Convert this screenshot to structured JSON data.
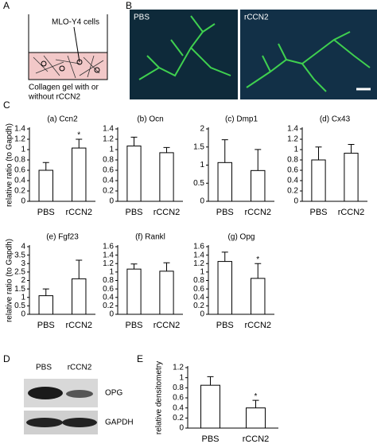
{
  "panels": {
    "A": {
      "label": "A",
      "cells": "MLO-Y4 cells",
      "caption": [
        "Collagen gel with or",
        "without rCCN2"
      ]
    },
    "B": {
      "label": "B",
      "images": [
        "PBS",
        "rCCN2"
      ]
    },
    "C": {
      "label": "C"
    },
    "D": {
      "label": "D",
      "lanes": [
        "PBS",
        "rCCN2"
      ],
      "bands": [
        "OPG",
        "GAPDH"
      ]
    },
    "E": {
      "label": "E"
    }
  },
  "chart_data": [
    {
      "type": "bar",
      "title": "(a) Ccn2",
      "ylabel": "relative ratio (to Gapdh)",
      "categories": [
        "PBS",
        "rCCN2"
      ],
      "values": [
        0.6,
        1.03
      ],
      "errors": [
        0.15,
        0.17
      ],
      "significance": [
        null,
        "*"
      ],
      "ylim": [
        0,
        1.4
      ],
      "yticks": [
        0,
        0.2,
        0.4,
        0.6,
        0.8,
        1,
        1.2,
        1.4
      ],
      "color": "#ffffff"
    },
    {
      "type": "bar",
      "title": "(b) Ocn",
      "categories": [
        "PBS",
        "rCCN2"
      ],
      "values": [
        1.07,
        0.94
      ],
      "errors": [
        0.17,
        0.1
      ],
      "ylim": [
        0,
        1.4
      ],
      "yticks": [
        0,
        0.2,
        0.4,
        0.6,
        0.8,
        1,
        1.2,
        1.4
      ],
      "color": "#ffffff"
    },
    {
      "type": "bar",
      "title": "(c) Dmp1",
      "categories": [
        "PBS",
        "rCCN2"
      ],
      "values": [
        1.07,
        0.85
      ],
      "errors": [
        0.63,
        0.58
      ],
      "ylim": [
        0,
        2
      ],
      "yticks": [
        0,
        0.5,
        1,
        1.5,
        2
      ],
      "color": "#ffffff"
    },
    {
      "type": "bar",
      "title": "(d) Cx43",
      "categories": [
        "PBS",
        "rCCN2"
      ],
      "values": [
        0.8,
        0.93
      ],
      "errors": [
        0.25,
        0.17
      ],
      "ylim": [
        0,
        1.4
      ],
      "yticks": [
        0,
        0.2,
        0.4,
        0.6,
        0.8,
        1,
        1.2,
        1.4
      ],
      "color": "#ffffff"
    },
    {
      "type": "bar",
      "title": "(e) Fgf23",
      "ylabel": "relative ratio (to Gapdh)",
      "categories": [
        "PBS",
        "rCCN2"
      ],
      "values": [
        1.1,
        2.1
      ],
      "errors": [
        0.4,
        1.1
      ],
      "ylim": [
        0,
        4
      ],
      "yticks": [
        0,
        0.5,
        1,
        1.5,
        2,
        2.5,
        3,
        3.5,
        4
      ],
      "color": "#ffffff"
    },
    {
      "type": "bar",
      "title": "(f) Rankl",
      "categories": [
        "PBS",
        "rCCN2"
      ],
      "values": [
        1.07,
        1.02
      ],
      "errors": [
        0.12,
        0.2
      ],
      "ylim": [
        0,
        1.6
      ],
      "yticks": [
        0,
        0.2,
        0.4,
        0.6,
        0.8,
        1,
        1.2,
        1.4,
        1.6
      ],
      "color": "#ffffff"
    },
    {
      "type": "bar",
      "title": "(g) Opg",
      "categories": [
        "PBS",
        "rCCN2"
      ],
      "values": [
        1.25,
        0.85
      ],
      "errors": [
        0.22,
        0.35
      ],
      "significance": [
        null,
        "*"
      ],
      "ylim": [
        0,
        1.6
      ],
      "yticks": [
        0,
        0.2,
        0.4,
        0.6,
        0.8,
        1,
        1.2,
        1.4,
        1.6
      ],
      "color": "#ffffff"
    },
    {
      "type": "bar",
      "ylabel": "relative densitometry",
      "categories": [
        "PBS",
        "rCCN2"
      ],
      "values": [
        0.85,
        0.4
      ],
      "errors": [
        0.17,
        0.15
      ],
      "significance": [
        null,
        "*"
      ],
      "ylim": [
        0,
        1.2
      ],
      "yticks": [
        0,
        0.2,
        0.4,
        0.6,
        0.8,
        1,
        1.2
      ],
      "color": "#ffffff"
    }
  ]
}
